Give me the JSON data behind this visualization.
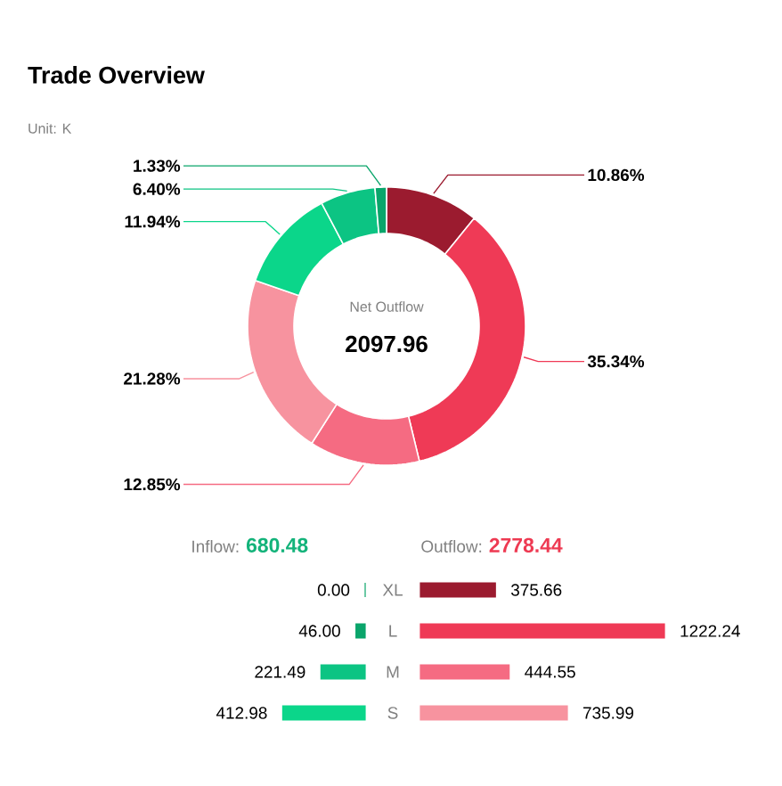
{
  "chart_data": [
    {
      "type": "donut",
      "title": "Trade Overview",
      "subtitle": "Unit: K",
      "annotations": [
        "Net Outflow",
        "2097.96"
      ],
      "categories": [
        null,
        null,
        null,
        null,
        null,
        null,
        null
      ],
      "values": [
        10.86,
        35.34,
        12.85,
        21.28,
        11.94,
        6.4,
        1.33
      ],
      "value_labels": [
        "10.86%",
        "35.34%",
        "12.85%",
        "21.28%",
        "11.94%",
        "6.40%",
        "1.33%"
      ],
      "colors": [
        "#9b1b2f",
        "#ef3a56",
        "#f56b82",
        "#f7939f",
        "#0bd68a",
        "#0cc483",
        "#0aa56b"
      ]
    },
    {
      "type": "bar",
      "orientation": "horizontal",
      "categories": [
        "XL",
        "L",
        "M",
        "S"
      ],
      "annotations": [
        "680.48"
      ],
      "series": [
        {
          "name": "Inflow:",
          "color": "#13b37a",
          "colors": [
            "#0aa56b",
            "#0aa56b",
            "#0cc483",
            "#0bd68a"
          ],
          "values": [
            0,
            46.0,
            221.49,
            412.98
          ],
          "value_labels": [
            "0.00",
            "46.00",
            "221.49",
            "412.98"
          ]
        }
      ]
    },
    {
      "type": "bar",
      "orientation": "horizontal",
      "categories": [
        null,
        null,
        null,
        null
      ],
      "annotations": [
        "2778.44"
      ],
      "series": [
        {
          "name": "Outflow:",
          "color": "#ee3a52",
          "colors": [
            "#9b1b2f",
            "#ef3a56",
            "#f56b82",
            "#f7939f"
          ],
          "values": [
            375.66,
            1222.24,
            444.55,
            735.99
          ],
          "value_labels": [
            "375.66",
            "1222.24",
            "444.55",
            "735.99"
          ]
        }
      ]
    }
  ]
}
